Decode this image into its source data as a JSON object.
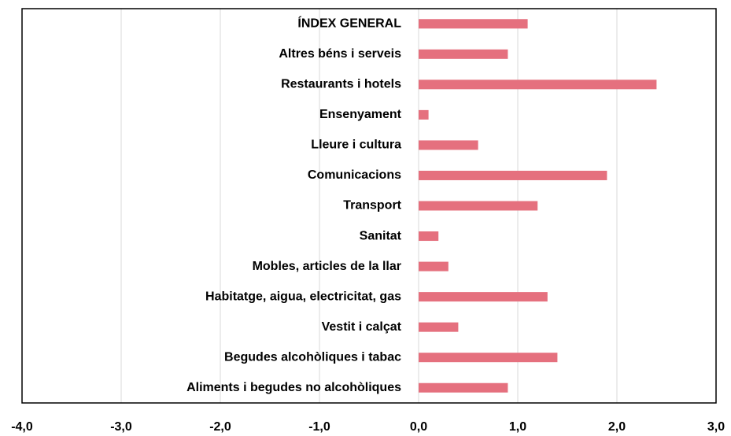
{
  "chart_data": {
    "type": "barh",
    "categories": [
      "ÍNDEX GENERAL",
      "Altres béns i serveis",
      "Restaurants i hotels",
      "Ensenyament",
      "Lleure i cultura",
      "Comunicacions",
      "Transport",
      "Sanitat",
      "Mobles, articles de la llar",
      "Habitatge, aigua, electricitat, gas",
      "Vestit i calçat",
      "Begudes alcohòliques i tabac",
      "Aliments i begudes no alcohòliques"
    ],
    "values": [
      1.1,
      0.9,
      2.4,
      0.1,
      0.6,
      1.9,
      1.2,
      0.2,
      0.3,
      1.3,
      0.4,
      1.4,
      0.9
    ],
    "color": "#e5707e",
    "xlim": [
      -4,
      3
    ],
    "xticks": [
      {
        "value": -4,
        "label": "-4,0"
      },
      {
        "value": -3,
        "label": "-3,0"
      },
      {
        "value": -2,
        "label": "-2,0"
      },
      {
        "value": -1,
        "label": "-1,0"
      },
      {
        "value": 0,
        "label": "0,0"
      },
      {
        "value": 1,
        "label": "1,0"
      },
      {
        "value": 2,
        "label": "2,0"
      },
      {
        "value": 3,
        "label": "3,0"
      }
    ],
    "grid": true
  }
}
